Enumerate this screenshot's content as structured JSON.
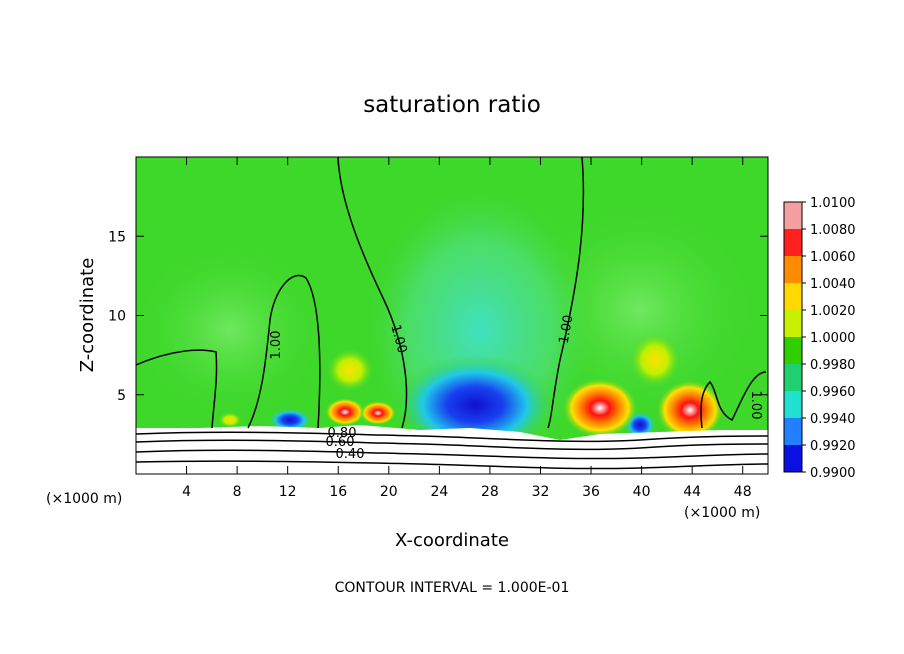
{
  "chart_data": {
    "type": "heatmap",
    "title": "saturation ratio",
    "xlabel": "X-coordinate",
    "ylabel": "Z-coordinate",
    "x_unit_left": "(×1000 m)",
    "x_unit_right": "(×1000 m)",
    "xlim": [
      0,
      50
    ],
    "ylim": [
      0,
      20
    ],
    "x_ticks": [
      4,
      8,
      12,
      16,
      20,
      24,
      28,
      32,
      36,
      40,
      44,
      48
    ],
    "y_ticks": [
      5,
      10,
      15
    ],
    "footer": "CONTOUR INTERVAL = 1.000E-01",
    "colorbar": {
      "levels": [
        "1.0100",
        "1.0080",
        "1.0060",
        "1.0040",
        "1.0020",
        "1.0000",
        "0.9980",
        "0.9960",
        "0.9940",
        "0.9920",
        "0.9900"
      ],
      "colors": [
        "#f4a0a0",
        "#ff2020",
        "#ff8c00",
        "#ffd800",
        "#c8f000",
        "#30d000",
        "#20d070",
        "#20e0d0",
        "#2080ff",
        "#0a10e0",
        "#7010b0"
      ]
    },
    "contour_labels": [
      "1.00",
      "1.00",
      "1.00",
      "1.00",
      "0.80",
      "0.60",
      "0.40"
    ],
    "background_color": "#3ed82a"
  }
}
